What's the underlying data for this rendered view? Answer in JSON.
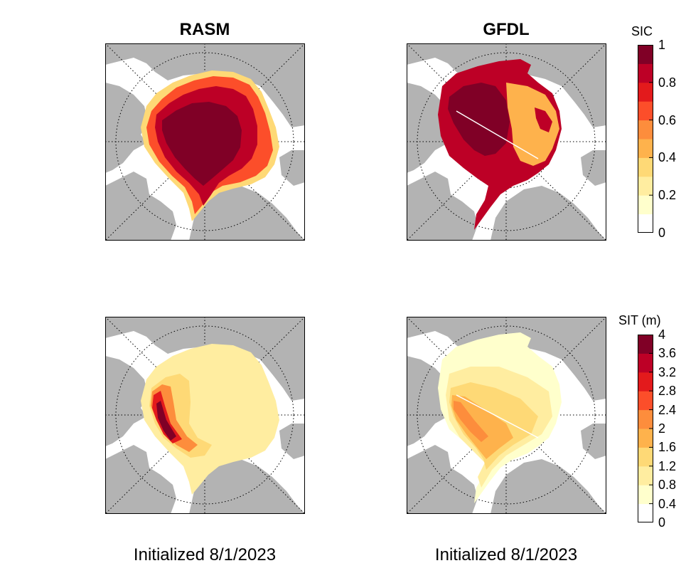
{
  "chart_data": [
    {
      "type": "heatmap",
      "title": "RASM",
      "variable": "SIC",
      "footer": "Initialized 8/1/2023",
      "projection": "polar-stereographic-north"
    },
    {
      "type": "heatmap",
      "title": "GFDL",
      "variable": "SIC",
      "footer": "Initialized 8/1/2023",
      "projection": "polar-stereographic-north"
    },
    {
      "type": "heatmap",
      "title": "",
      "variable": "SIT (m)",
      "projection": "polar-stereographic-north"
    },
    {
      "type": "heatmap",
      "title": "",
      "variable": "SIT (m)",
      "projection": "polar-stereographic-north"
    }
  ],
  "colorbars": {
    "sic": {
      "label": "SIC",
      "range": [
        0,
        1
      ],
      "ticks": [
        "1",
        "0.8",
        "0.6",
        "0.4",
        "0.2",
        "0"
      ],
      "colors": [
        "#ffffff",
        "#ffffcc",
        "#ffeda0",
        "#fed976",
        "#feb24c",
        "#fd8d3c",
        "#fc4e2a",
        "#e31a1c",
        "#bd0026",
        "#800026"
      ]
    },
    "sit": {
      "label": "SIT (m)",
      "range": [
        0,
        4
      ],
      "ticks": [
        "4",
        "3.6",
        "3.2",
        "2.8",
        "2.4",
        "2",
        "1.6",
        "1.2",
        "0.8",
        "0.4",
        "0"
      ],
      "colors": [
        "#ffffff",
        "#ffffcc",
        "#ffeda0",
        "#fed976",
        "#feb24c",
        "#fd8d3c",
        "#fc4e2a",
        "#e31a1c",
        "#bd0026",
        "#800026"
      ]
    }
  },
  "colors": {
    "land": "#b3b3b3",
    "ocean": "#ffffff"
  }
}
